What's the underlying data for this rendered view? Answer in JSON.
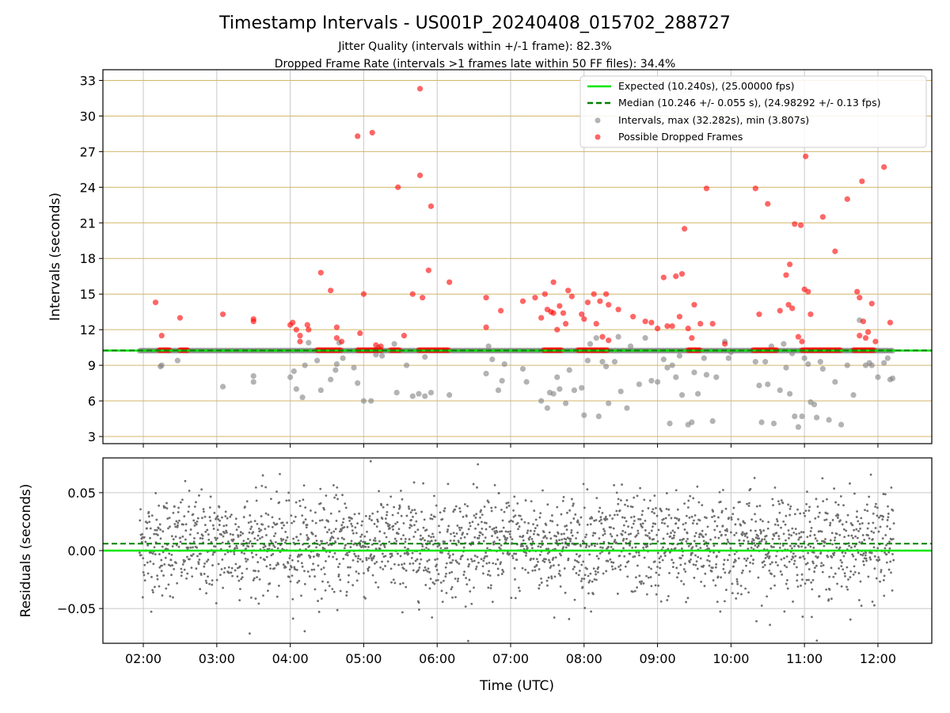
{
  "title": "Timestamp Intervals - US001P_20240408_015702_288727",
  "subtitle_1": "Jitter Quality (intervals within +/-1 frame): 82.3%",
  "subtitle_2": "Dropped Frame Rate (intervals >1 frames late within 50 FF files): 34.4%",
  "colors": {
    "expected": "#00e600",
    "median": "#008000",
    "intervals": "#808080",
    "dropped": "#ff0000",
    "hgrid_top": "#d4b66a",
    "grid": "#c8c8c8"
  },
  "chart_data": [
    {
      "type": "scatter",
      "panel": "top",
      "ylabel": "Intervals (seconds)",
      "xlabel": "",
      "xlim": [
        "01:27",
        "12:44"
      ],
      "ylim": [
        2.4,
        33.9
      ],
      "yticks": [
        "3",
        "6",
        "9",
        "12",
        "15",
        "18",
        "21",
        "24",
        "27",
        "30",
        "33"
      ],
      "xticks": [
        "02:00",
        "03:00",
        "04:00",
        "05:00",
        "06:00",
        "07:00",
        "08:00",
        "09:00",
        "10:00",
        "11:00",
        "12:00"
      ],
      "grid": "on",
      "legend_position": "top-right",
      "legend": [
        "Expected (10.240s), (25.00000 fps)",
        "Median (10.246 +/- 0.055 s), (24.98292 +/- 0.13 fps)",
        "Intervals, max (32.282s), min (3.807s)",
        "Possible Dropped Frames"
      ],
      "expected_line": 10.24,
      "median_line": 10.246,
      "series": [
        {
          "name": "Intervals, max (32.282s), min (3.807s)",
          "x_start": "01:57",
          "x_end": "12:13",
          "baseline_value": 10.24,
          "points": [
            [
              "02:14",
              8.9
            ],
            [
              "02:15",
              9.0
            ],
            [
              "02:28",
              9.4
            ],
            [
              "03:05",
              7.2
            ],
            [
              "03:30",
              7.6
            ],
            [
              "03:30",
              8.1
            ],
            [
              "04:00",
              8.0
            ],
            [
              "04:03",
              8.5
            ],
            [
              "04:05",
              7.0
            ],
            [
              "04:10",
              6.3
            ],
            [
              "04:12",
              9.0
            ],
            [
              "04:15",
              10.9
            ],
            [
              "04:22",
              9.4
            ],
            [
              "04:25",
              6.9
            ],
            [
              "04:33",
              7.8
            ],
            [
              "04:37",
              8.6
            ],
            [
              "04:38",
              9.1
            ],
            [
              "04:40",
              10.9
            ],
            [
              "04:43",
              9.6
            ],
            [
              "04:52",
              8.8
            ],
            [
              "04:55",
              7.5
            ],
            [
              "05:00",
              6.0
            ],
            [
              "05:06",
              6.0
            ],
            [
              "05:10",
              9.9
            ],
            [
              "05:12",
              10.5
            ],
            [
              "05:15",
              9.8
            ],
            [
              "05:25",
              10.8
            ],
            [
              "05:27",
              6.7
            ],
            [
              "05:35",
              9.0
            ],
            [
              "05:40",
              6.4
            ],
            [
              "05:45",
              6.6
            ],
            [
              "05:50",
              6.4
            ],
            [
              "05:55",
              6.7
            ],
            [
              "05:50",
              9.7
            ],
            [
              "06:10",
              6.5
            ],
            [
              "06:40",
              8.3
            ],
            [
              "06:42",
              10.6
            ],
            [
              "06:45",
              9.5
            ],
            [
              "06:50",
              6.9
            ],
            [
              "06:53",
              7.7
            ],
            [
              "06:55",
              9.1
            ],
            [
              "07:10",
              8.7
            ],
            [
              "07:13",
              7.6
            ],
            [
              "07:25",
              6.0
            ],
            [
              "07:30",
              5.4
            ],
            [
              "07:32",
              6.7
            ],
            [
              "07:35",
              6.6
            ],
            [
              "07:38",
              8.0
            ],
            [
              "07:40",
              7.0
            ],
            [
              "07:45",
              5.8
            ],
            [
              "07:48",
              8.6
            ],
            [
              "07:52",
              6.9
            ],
            [
              "07:58",
              7.1
            ],
            [
              "08:00",
              4.8
            ],
            [
              "08:03",
              9.4
            ],
            [
              "08:05",
              10.8
            ],
            [
              "08:10",
              11.3
            ],
            [
              "08:12",
              4.7
            ],
            [
              "08:15",
              9.3
            ],
            [
              "08:18",
              8.9
            ],
            [
              "08:20",
              5.8
            ],
            [
              "08:25",
              9.3
            ],
            [
              "08:28",
              11.4
            ],
            [
              "08:30",
              6.8
            ],
            [
              "08:35",
              5.4
            ],
            [
              "08:38",
              10.6
            ],
            [
              "08:45",
              7.4
            ],
            [
              "08:50",
              11.3
            ],
            [
              "08:55",
              7.7
            ],
            [
              "09:00",
              7.6
            ],
            [
              "09:05",
              9.5
            ],
            [
              "09:08",
              8.8
            ],
            [
              "09:10",
              4.1
            ],
            [
              "09:12",
              9.0
            ],
            [
              "09:15",
              8.0
            ],
            [
              "09:18",
              9.8
            ],
            [
              "09:20",
              6.5
            ],
            [
              "09:25",
              4.0
            ],
            [
              "09:28",
              4.2
            ],
            [
              "09:30",
              8.4
            ],
            [
              "09:33",
              6.6
            ],
            [
              "09:38",
              9.6
            ],
            [
              "09:40",
              8.2
            ],
            [
              "09:45",
              4.3
            ],
            [
              "09:48",
              8.0
            ],
            [
              "09:55",
              11.0
            ],
            [
              "09:58",
              9.6
            ],
            [
              "10:00",
              10.1
            ],
            [
              "10:20",
              9.3
            ],
            [
              "10:23",
              7.3
            ],
            [
              "10:25",
              4.2
            ],
            [
              "10:28",
              9.3
            ],
            [
              "10:30",
              7.4
            ],
            [
              "10:33",
              10.6
            ],
            [
              "10:35",
              4.1
            ],
            [
              "10:40",
              6.9
            ],
            [
              "10:43",
              10.8
            ],
            [
              "10:45",
              8.8
            ],
            [
              "10:48",
              6.6
            ],
            [
              "10:50",
              10.0
            ],
            [
              "10:52",
              4.7
            ],
            [
              "10:55",
              3.8
            ],
            [
              "10:58",
              4.7
            ],
            [
              "11:00",
              9.6
            ],
            [
              "11:03",
              9.1
            ],
            [
              "11:05",
              5.9
            ],
            [
              "11:08",
              5.7
            ],
            [
              "11:10",
              4.6
            ],
            [
              "11:13",
              9.3
            ],
            [
              "11:15",
              8.7
            ],
            [
              "11:20",
              4.4
            ],
            [
              "11:25",
              7.6
            ],
            [
              "11:30",
              4.0
            ],
            [
              "11:35",
              9.0
            ],
            [
              "11:40",
              6.5
            ],
            [
              "11:45",
              12.8
            ],
            [
              "11:50",
              9.0
            ],
            [
              "11:53",
              9.2
            ],
            [
              "11:55",
              9.0
            ],
            [
              "12:00",
              8.0
            ],
            [
              "12:05",
              9.2
            ],
            [
              "12:08",
              9.6
            ],
            [
              "12:10",
              7.8
            ],
            [
              "12:12",
              7.9
            ]
          ]
        },
        {
          "name": "Possible Dropped Frames",
          "baseline_runs": [
            [
              "02:13",
              "02:22"
            ],
            [
              "02:30",
              "02:36"
            ],
            [
              "04:22",
              "04:42"
            ],
            [
              "04:55",
              "05:15"
            ],
            [
              "05:22",
              "05:30"
            ],
            [
              "05:45",
              "06:10"
            ],
            [
              "07:27",
              "07:42"
            ],
            [
              "07:55",
              "08:20"
            ],
            [
              "09:25",
              "09:35"
            ],
            [
              "10:18",
              "10:38"
            ],
            [
              "10:58",
              "11:30"
            ],
            [
              "11:40",
              "11:58"
            ]
          ],
          "points": [
            [
              "02:10",
              14.3
            ],
            [
              "02:15",
              11.5
            ],
            [
              "02:30",
              13.0
            ],
            [
              "03:05",
              13.3
            ],
            [
              "03:30",
              12.9
            ],
            [
              "03:30",
              12.7
            ],
            [
              "04:00",
              12.4
            ],
            [
              "04:02",
              12.6
            ],
            [
              "04:05",
              12.0
            ],
            [
              "04:08",
              11.5
            ],
            [
              "04:08",
              11.0
            ],
            [
              "04:14",
              12.4
            ],
            [
              "04:15",
              12.0
            ],
            [
              "04:25",
              16.8
            ],
            [
              "04:33",
              15.3
            ],
            [
              "04:38",
              12.2
            ],
            [
              "04:38",
              11.3
            ],
            [
              "04:42",
              11.0
            ],
            [
              "04:55",
              28.3
            ],
            [
              "04:57",
              11.7
            ],
            [
              "05:00",
              15.0
            ],
            [
              "05:07",
              28.6
            ],
            [
              "05:10",
              10.7
            ],
            [
              "05:14",
              10.6
            ],
            [
              "05:28",
              24.0
            ],
            [
              "05:33",
              11.5
            ],
            [
              "05:40",
              15.0
            ],
            [
              "05:46",
              32.3
            ],
            [
              "05:46",
              25.0
            ],
            [
              "05:48",
              14.7
            ],
            [
              "05:53",
              17.0
            ],
            [
              "05:55",
              22.4
            ],
            [
              "06:10",
              16.0
            ],
            [
              "06:40",
              12.2
            ],
            [
              "06:40",
              14.7
            ],
            [
              "06:52",
              13.6
            ],
            [
              "07:10",
              14.4
            ],
            [
              "07:20",
              14.7
            ],
            [
              "07:25",
              13.0
            ],
            [
              "07:28",
              15.0
            ],
            [
              "07:30",
              13.7
            ],
            [
              "07:33",
              13.5
            ],
            [
              "07:35",
              16.0
            ],
            [
              "07:35",
              13.4
            ],
            [
              "07:38",
              12.0
            ],
            [
              "07:40",
              14.0
            ],
            [
              "07:43",
              13.4
            ],
            [
              "07:45",
              12.5
            ],
            [
              "07:47",
              15.3
            ],
            [
              "07:50",
              14.8
            ],
            [
              "07:58",
              13.3
            ],
            [
              "08:00",
              12.9
            ],
            [
              "08:03",
              14.3
            ],
            [
              "08:08",
              15.0
            ],
            [
              "08:10",
              12.5
            ],
            [
              "08:13",
              14.4
            ],
            [
              "08:15",
              11.4
            ],
            [
              "08:18",
              15.0
            ],
            [
              "08:20",
              11.1
            ],
            [
              "08:20",
              14.1
            ],
            [
              "08:28",
              13.7
            ],
            [
              "08:40",
              13.1
            ],
            [
              "08:50",
              12.7
            ],
            [
              "08:55",
              12.6
            ],
            [
              "09:00",
              12.1
            ],
            [
              "09:05",
              16.4
            ],
            [
              "09:08",
              12.3
            ],
            [
              "09:12",
              12.3
            ],
            [
              "09:15",
              16.5
            ],
            [
              "09:18",
              13.1
            ],
            [
              "09:20",
              16.7
            ],
            [
              "09:22",
              20.5
            ],
            [
              "09:25",
              12.1
            ],
            [
              "09:28",
              11.3
            ],
            [
              "09:30",
              14.1
            ],
            [
              "09:35",
              12.5
            ],
            [
              "09:40",
              23.9
            ],
            [
              "09:45",
              12.5
            ],
            [
              "09:55",
              10.8
            ],
            [
              "10:20",
              23.9
            ],
            [
              "10:23",
              13.3
            ],
            [
              "10:30",
              22.6
            ],
            [
              "10:40",
              13.6
            ],
            [
              "10:45",
              16.6
            ],
            [
              "10:47",
              14.1
            ],
            [
              "10:48",
              17.5
            ],
            [
              "10:50",
              13.8
            ],
            [
              "10:52",
              20.9
            ],
            [
              "10:55",
              11.4
            ],
            [
              "10:57",
              20.8
            ],
            [
              "10:58",
              11.0
            ],
            [
              "11:00",
              15.4
            ],
            [
              "11:01",
              26.6
            ],
            [
              "11:03",
              15.2
            ],
            [
              "11:05",
              13.3
            ],
            [
              "11:15",
              21.5
            ],
            [
              "11:25",
              18.6
            ],
            [
              "11:35",
              23.0
            ],
            [
              "11:43",
              15.2
            ],
            [
              "11:45",
              11.5
            ],
            [
              "11:45",
              14.7
            ],
            [
              "11:47",
              24.5
            ],
            [
              "11:48",
              12.7
            ],
            [
              "11:50",
              11.3
            ],
            [
              "11:52",
              11.8
            ],
            [
              "11:55",
              14.2
            ],
            [
              "11:58",
              11.0
            ],
            [
              "12:05",
              25.7
            ],
            [
              "12:10",
              12.6
            ]
          ]
        }
      ]
    },
    {
      "type": "scatter",
      "panel": "bottom",
      "ylabel": "Residuals (seconds)",
      "xlabel": "Time (UTC)",
      "xlim": [
        "01:27",
        "12:44"
      ],
      "ylim": [
        -0.08,
        0.08
      ],
      "yticks": [
        "0.05",
        "0.00",
        "−0.05"
      ],
      "xticks": [
        "02:00",
        "03:00",
        "04:00",
        "05:00",
        "06:00",
        "07:00",
        "08:00",
        "09:00",
        "10:00",
        "11:00",
        "12:00"
      ],
      "grid": "on",
      "expected_line": 0.0,
      "median_line": 0.006,
      "series": [
        {
          "name": "Residuals",
          "x_start": "01:57",
          "x_end": "12:13",
          "point_count": 2400,
          "mean": 0.005,
          "stddev": 0.022,
          "y_range_observed": [
            -0.078,
            0.078
          ]
        }
      ]
    }
  ]
}
